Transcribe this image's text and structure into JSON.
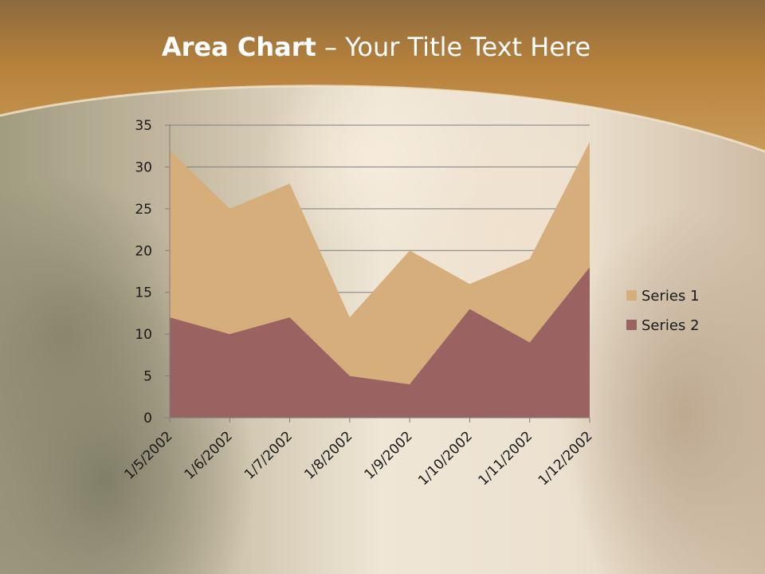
{
  "slide": {
    "title_bold": "Area Chart",
    "title_rest": " – Your Title Text Here"
  },
  "colors": {
    "header": "#b8823c",
    "series1": "#d5ae7b",
    "series2": "#9a6362",
    "gridline": "#7f7f7f"
  },
  "chart_data": {
    "type": "area",
    "title": "",
    "xlabel": "",
    "ylabel": "",
    "categories": [
      "1/5/2002",
      "1/6/2002",
      "1/7/2002",
      "1/8/2002",
      "1/9/2002",
      "1/10/2002",
      "1/11/2002",
      "1/12/2002"
    ],
    "series": [
      {
        "name": "Series 1",
        "values": [
          32,
          25,
          28,
          12,
          20,
          16,
          19,
          33
        ]
      },
      {
        "name": "Series 2",
        "values": [
          12,
          10,
          12,
          5,
          4,
          13,
          9,
          18
        ]
      }
    ],
    "ylim": [
      0,
      35
    ],
    "yticks": [
      0,
      5,
      10,
      15,
      20,
      25,
      30,
      35
    ],
    "grid": true,
    "legend_position": "right"
  }
}
